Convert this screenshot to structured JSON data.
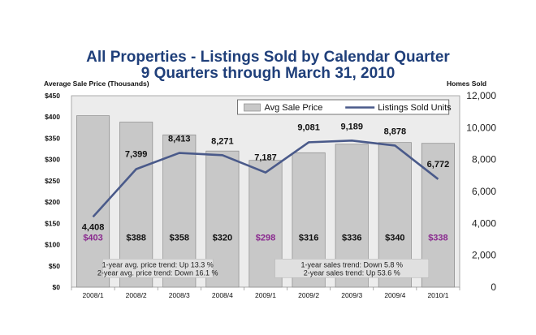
{
  "chart_data": {
    "type": "bar",
    "title": "All Properties - Listings Sold by Calendar Quarter",
    "subtitle": "9 Quarters through March 31, 2010",
    "ylabel_left": "Average Sale Price (Thousands)",
    "ylabel_right": "Homes Sold",
    "categories": [
      "2008/1",
      "2008/2",
      "2008/3",
      "2008/4",
      "2009/1",
      "2009/2",
      "2009/3",
      "2009/4",
      "2010/1"
    ],
    "ylim_left": [
      0,
      450
    ],
    "yticks_left": [
      "$0",
      "$50",
      "$100",
      "$150",
      "$200",
      "$250",
      "$300",
      "$350",
      "$400",
      "$450"
    ],
    "ylim_right": [
      0,
      12000
    ],
    "yticks_right": [
      "0",
      "2,000",
      "4,000",
      "6,000",
      "8,000",
      "10,000",
      "12,000"
    ],
    "series": [
      {
        "name": "Avg Sale Price",
        "kind": "bar",
        "axis": "left",
        "color": "#c8c8c8",
        "values": [
          403,
          388,
          358,
          320,
          298,
          316,
          336,
          340,
          338
        ],
        "labels": [
          "$403",
          "$388",
          "$358",
          "$320",
          "$298",
          "$316",
          "$336",
          "$340",
          "$338"
        ],
        "highlight_label_color": "#8a2a8f",
        "highlighted": [
          true,
          false,
          false,
          false,
          true,
          false,
          false,
          false,
          true
        ]
      },
      {
        "name": "Listings Sold Units",
        "kind": "line",
        "axis": "right",
        "color": "#4a5a8a",
        "values": [
          4408,
          7399,
          8413,
          8271,
          7187,
          9081,
          9189,
          8878,
          6772
        ],
        "labels": [
          "4,408",
          "7,399",
          "8,413",
          "8,271",
          "7,187",
          "9,081",
          "9,189",
          "8,878",
          "6,772"
        ]
      }
    ],
    "legend_position": "top-right",
    "grid": false,
    "annotations": [
      {
        "lines": [
          "1-year avg. price trend: Up 13.3 %",
          "2-year avg. price trend: Down 16.1 %"
        ]
      },
      {
        "lines": [
          "1-year sales trend: Down 5.8 %",
          "2-year sales trend: Up 53.6 %"
        ]
      }
    ],
    "plot_background": "#ececec"
  }
}
